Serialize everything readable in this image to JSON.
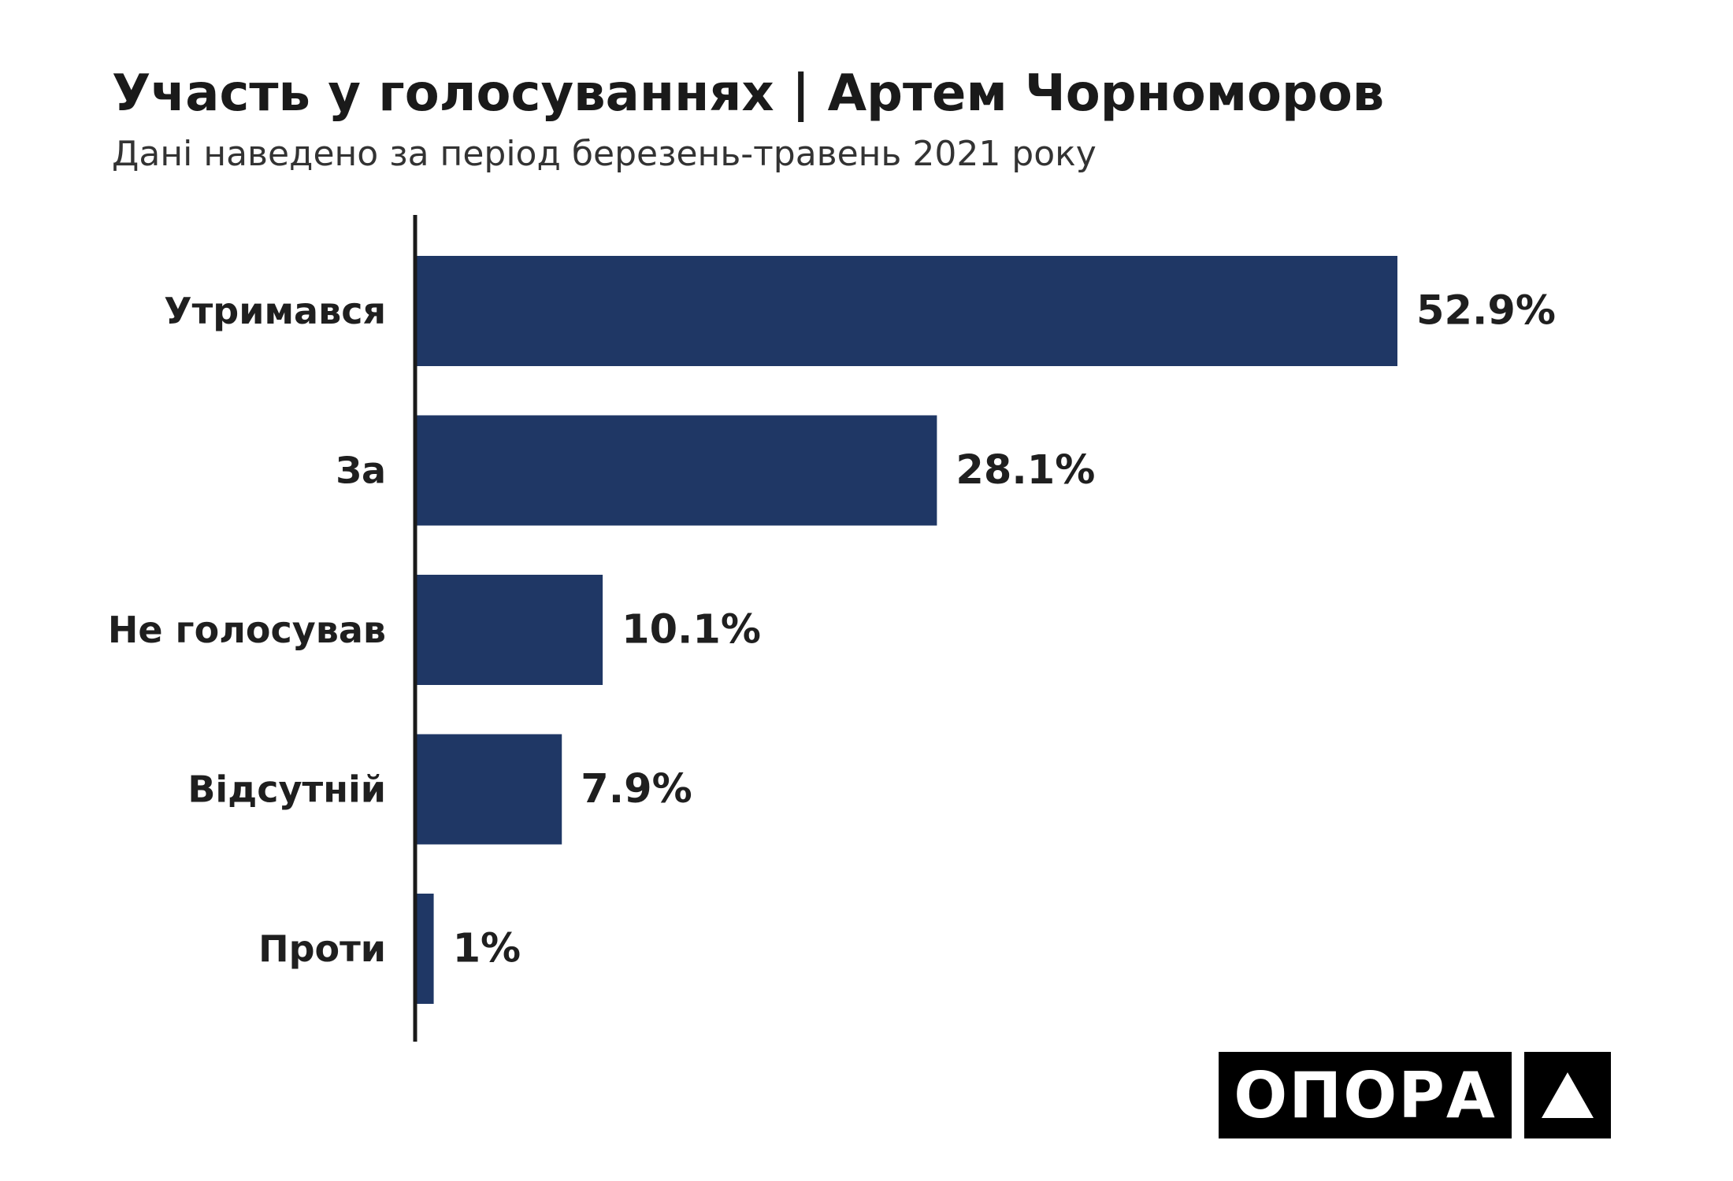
{
  "title": "Участь у голосуваннях | Артем Чорноморов",
  "subtitle": "Дані наведено за період березень-травень 2021 року",
  "logo": {
    "text": "ОПОРА",
    "mark_icon": "triangle-icon"
  },
  "colors": {
    "bar": "#1f3765",
    "axis": "#1a1a1a",
    "text": "#1f1f1f",
    "logo_bg": "#000000",
    "logo_fg": "#ffffff"
  },
  "chart_data": {
    "type": "bar",
    "orientation": "horizontal",
    "categories": [
      "Утримався",
      "За",
      "Не голосував",
      "Відсутній",
      "Проти"
    ],
    "values": [
      52.9,
      28.1,
      10.1,
      7.9,
      1
    ],
    "value_labels": [
      "52.9%",
      "28.1%",
      "10.1%",
      "7.9%",
      "1%"
    ],
    "title": "Участь у голосуваннях | Артем Чорноморов",
    "subtitle": "Дані наведено за період березень-травень 2021 року",
    "xlabel": "",
    "ylabel": "",
    "xlim": [
      0,
      52.9
    ],
    "grid": false,
    "legend": "none"
  }
}
